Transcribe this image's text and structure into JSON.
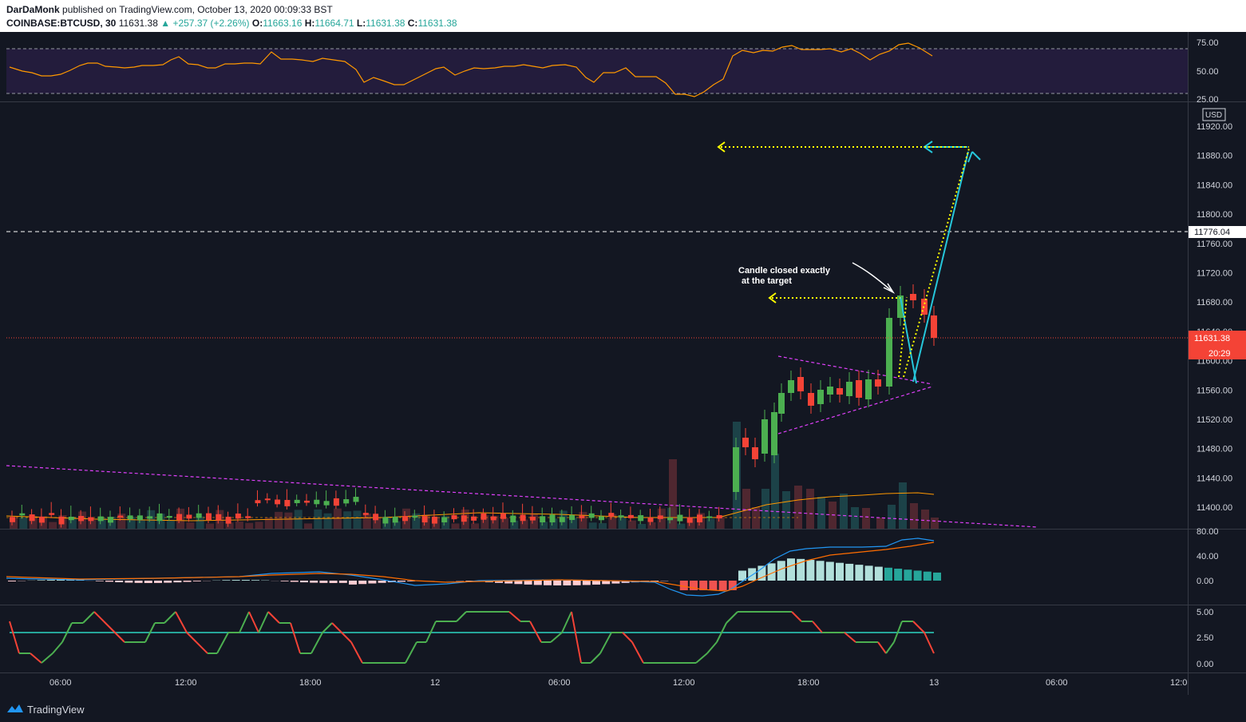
{
  "header": {
    "author": "DarDaMonk",
    "published_text": "published on TradingView.com, October 13, 2020 00:09:33 BST",
    "symbol": "COINBASE:BTCUSD, 30",
    "last": "11631.38",
    "change": "+257.37 (+2.26%)",
    "o_label": "O:",
    "o_value": "11663.16",
    "h_label": "H:",
    "h_value": "11664.71",
    "l_label": "L:",
    "l_value": "11631.38",
    "c_label": "C:",
    "c_value": "11631.38"
  },
  "price_axis": {
    "currency": "USD",
    "ticks": [
      "11920.00",
      "11880.00",
      "11840.00",
      "11800.00",
      "11760.00",
      "11720.00",
      "11680.00",
      "11640.00",
      "11600.00",
      "11560.00",
      "11520.00",
      "11480.00",
      "11440.00",
      "11400.00"
    ],
    "level_label": "11776.04",
    "current_price": "11631.38",
    "countdown": "20:29"
  },
  "rsi_axis": {
    "ticks": [
      "75.00",
      "50.00",
      "25.00"
    ]
  },
  "macd_axis": {
    "ticks": [
      "80.00",
      "40.00",
      "0.00"
    ]
  },
  "osc_axis": {
    "ticks": [
      "5.00",
      "2.50",
      "0.00"
    ]
  },
  "time_axis": {
    "ticks": [
      "06:00",
      "12:00",
      "18:00",
      "12",
      "06:00",
      "12:00",
      "18:00",
      "13",
      "06:00",
      "12:0"
    ]
  },
  "annotation": {
    "line1": "Candle closed exactly",
    "line2": "at the target"
  },
  "footer": {
    "brand": "TradingView"
  },
  "colors": {
    "up": "#4caf50",
    "down": "#f44336",
    "rsi": "#ff9800",
    "macd": "#2196f3",
    "signal": "#ff6d00",
    "cyan": "#26c6da",
    "yellow": "#ffff00",
    "magenta": "#e040fb"
  }
}
